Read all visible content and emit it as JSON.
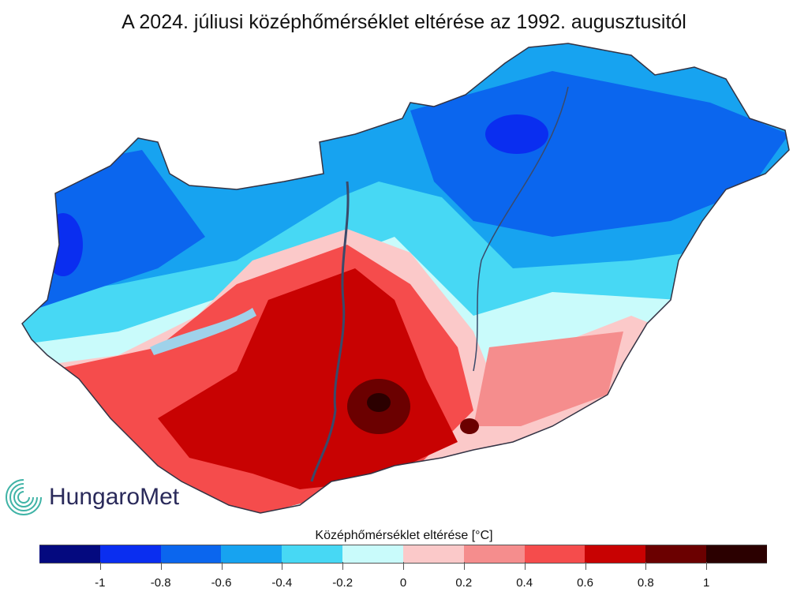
{
  "title": "A 2024. júliusi középhőmérséklet eltérése az 1992. augusztusitól",
  "logo": {
    "text": "HungaroMet",
    "icon": "swirl-logo-icon"
  },
  "legend": {
    "title": "Középhőmérséklet eltérése [°C]",
    "colors": [
      "#04097f",
      "#0a2ef0",
      "#0b66ee",
      "#17a3f0",
      "#47d8f4",
      "#c9fbfb",
      "#fbc9c9",
      "#f58d8d",
      "#f54c4c",
      "#c80202",
      "#6b0000",
      "#2b0000"
    ],
    "ticks": [
      "-1",
      "-0.8",
      "-0.6",
      "-0.4",
      "-0.2",
      "0",
      "0.2",
      "0.4",
      "0.6",
      "0.8",
      "1"
    ]
  }
}
